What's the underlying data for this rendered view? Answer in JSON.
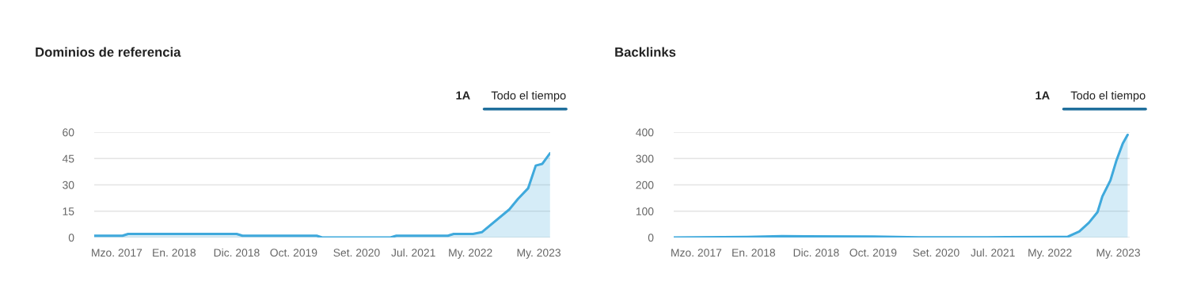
{
  "chart_data": [
    {
      "type": "area",
      "title": "Dominios de referencia",
      "annotations": [
        "1A",
        "Todo el tiempo"
      ],
      "x": [
        "2016-11-01",
        "2017-04-01",
        "2017-05-01",
        "2018-12-01",
        "2019-01-01",
        "2020-02-01",
        "2020-03-01",
        "2021-03-01",
        "2021-04-01",
        "2022-01-01",
        "2022-02-01",
        "2022-05-15",
        "2022-07-01",
        "2022-11-25",
        "2023-01-10",
        "2023-03-05",
        "2023-04-15",
        "2023-05-20",
        "2023-06-30"
      ],
      "series": [
        {
          "color": "#3fa9dc",
          "values": [
            1,
            1,
            2,
            2,
            1,
            1,
            0,
            0,
            1,
            1,
            2,
            2,
            3,
            16,
            22,
            28,
            41,
            42,
            48
          ]
        }
      ],
      "xlim": [
        "2016-11-01",
        "2023-07-01"
      ],
      "xticks": [
        {
          "value": "2017-03-01",
          "label": "Mzo. 2017"
        },
        {
          "value": "2018-01-01",
          "label": "En. 2018"
        },
        {
          "value": "2018-12-01",
          "label": "Dic. 2018"
        },
        {
          "value": "2019-10-01",
          "label": "Oct. 2019"
        },
        {
          "value": "2020-09-01",
          "label": "Set. 2020"
        },
        {
          "value": "2021-07-01",
          "label": "Jul. 2021"
        },
        {
          "value": "2022-05-01",
          "label": "My. 2022"
        },
        {
          "value": "2023-05-01",
          "label": "My. 2023"
        }
      ],
      "ylim": [
        0,
        60
      ],
      "yticks": [
        0,
        15,
        30,
        45,
        60
      ],
      "grid": "y",
      "legend": false
    },
    {
      "type": "area",
      "title": "Backlinks",
      "annotations": [
        "1A",
        "Todo el tiempo"
      ],
      "x": [
        "2016-11-01",
        "2017-12-01",
        "2018-06-01",
        "2019-10-01",
        "2020-06-01",
        "2021-06-01",
        "2022-06-01",
        "2022-08-05",
        "2022-10-05",
        "2022-11-25",
        "2023-01-10",
        "2023-02-05",
        "2023-03-20",
        "2023-04-20",
        "2023-05-25",
        "2023-06-20"
      ],
      "series": [
        {
          "color": "#3fa9dc",
          "values": [
            0,
            2,
            5,
            4,
            1,
            1,
            2,
            3,
            23,
            56,
            96,
            156,
            217,
            290,
            357,
            390
          ]
        }
      ],
      "xlim": [
        "2016-11-01",
        "2023-07-01"
      ],
      "xticks": [
        {
          "value": "2017-03-01",
          "label": "Mzo. 2017"
        },
        {
          "value": "2018-01-01",
          "label": "En. 2018"
        },
        {
          "value": "2018-12-01",
          "label": "Dic. 2018"
        },
        {
          "value": "2019-10-01",
          "label": "Oct. 2019"
        },
        {
          "value": "2020-09-01",
          "label": "Set. 2020"
        },
        {
          "value": "2021-07-01",
          "label": "Jul. 2021"
        },
        {
          "value": "2022-05-01",
          "label": "My. 2022"
        },
        {
          "value": "2023-05-01",
          "label": "My. 2023"
        }
      ],
      "ylim": [
        0,
        400
      ],
      "yticks": [
        0,
        100,
        200,
        300,
        400
      ],
      "grid": "y",
      "legend": false
    }
  ]
}
